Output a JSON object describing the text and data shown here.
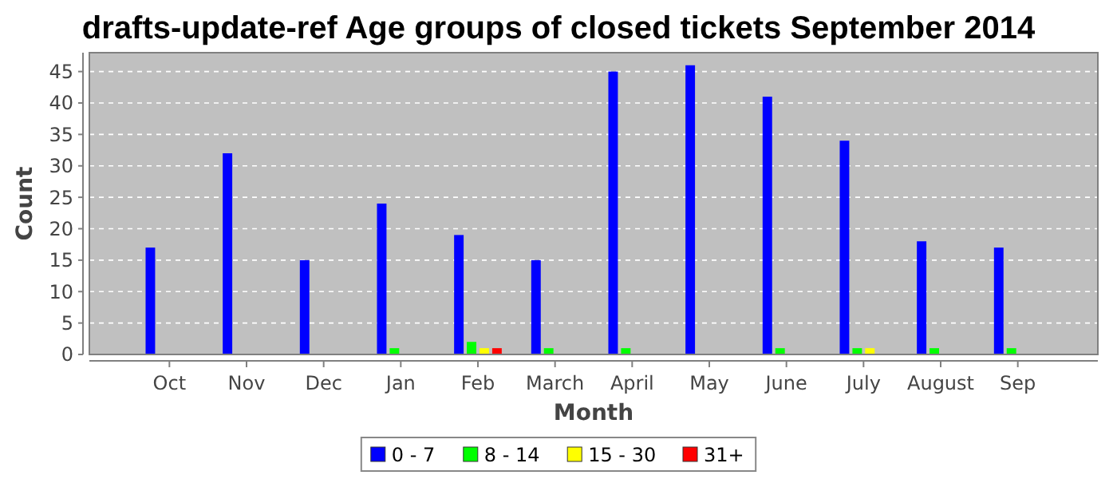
{
  "chart_data": {
    "type": "bar",
    "title": "drafts-update-ref Age groups of closed tickets September 2014",
    "xlabel": "Month",
    "ylabel": "Count",
    "categories": [
      "Oct",
      "Nov",
      "Dec",
      "Jan",
      "Feb",
      "March",
      "April",
      "May",
      "June",
      "July",
      "August",
      "Sep"
    ],
    "series": [
      {
        "name": "0 - 7",
        "color": "#0000ff",
        "values": [
          17,
          32,
          15,
          24,
          19,
          15,
          45,
          46,
          41,
          34,
          18,
          17
        ]
      },
      {
        "name": "8 - 14",
        "color": "#00ff00",
        "values": [
          0,
          0,
          0,
          1,
          2,
          1,
          1,
          0,
          1,
          1,
          1,
          1
        ]
      },
      {
        "name": "15 - 30",
        "color": "#ffff00",
        "values": [
          0,
          0,
          0,
          0,
          1,
          0,
          0,
          0,
          0,
          1,
          0,
          0
        ]
      },
      {
        "name": "31+",
        "color": "#ff0000",
        "values": [
          0,
          0,
          0,
          0,
          1,
          0,
          0,
          0,
          0,
          0,
          0,
          0
        ]
      }
    ],
    "ylim": [
      0,
      48
    ],
    "yticks": [
      0,
      5,
      10,
      15,
      20,
      25,
      30,
      35,
      40,
      45
    ],
    "grid": "y",
    "legend": "bottom"
  }
}
